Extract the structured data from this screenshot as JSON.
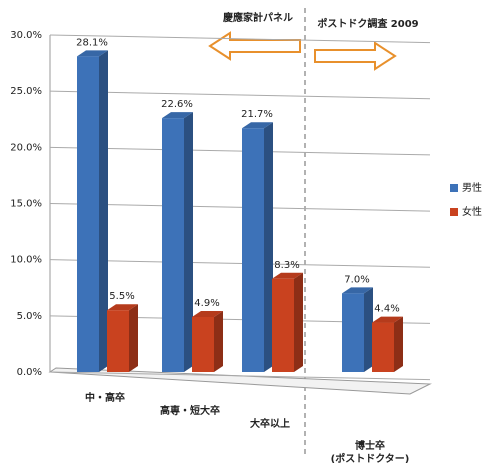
{
  "chart_data": {
    "type": "bar",
    "categories": [
      "中・高卒",
      "高専・短大卒",
      "大卒以上",
      "博士卒\n(ポストドクター)"
    ],
    "series": [
      {
        "name": "男性",
        "color": "#3d72b8",
        "values": [
          28.1,
          22.6,
          21.7,
          7.0
        ],
        "value_labels": [
          "28.1%",
          "22.6%",
          "21.7%",
          "7.0%"
        ]
      },
      {
        "name": "女性",
        "color": "#c9421f",
        "values": [
          5.5,
          4.9,
          8.3,
          4.4
        ],
        "value_labels": [
          "5.5%",
          "4.9%",
          "8.3%",
          "4.4%"
        ]
      }
    ],
    "ylim": [
      0,
      30
    ],
    "yticks": [
      {
        "value": 0,
        "label": "0.0%"
      },
      {
        "value": 5,
        "label": "5.0%"
      },
      {
        "value": 10,
        "label": "10.0%"
      },
      {
        "value": 15,
        "label": "15.0%"
      },
      {
        "value": 20,
        "label": "20.0%"
      },
      {
        "value": 25,
        "label": "25.0%"
      },
      {
        "value": 30,
        "label": "30.0%"
      }
    ],
    "grid": true,
    "legend": "right",
    "annotations": [
      "慶應家計パネル",
      "ポストドク調査 2009"
    ]
  }
}
